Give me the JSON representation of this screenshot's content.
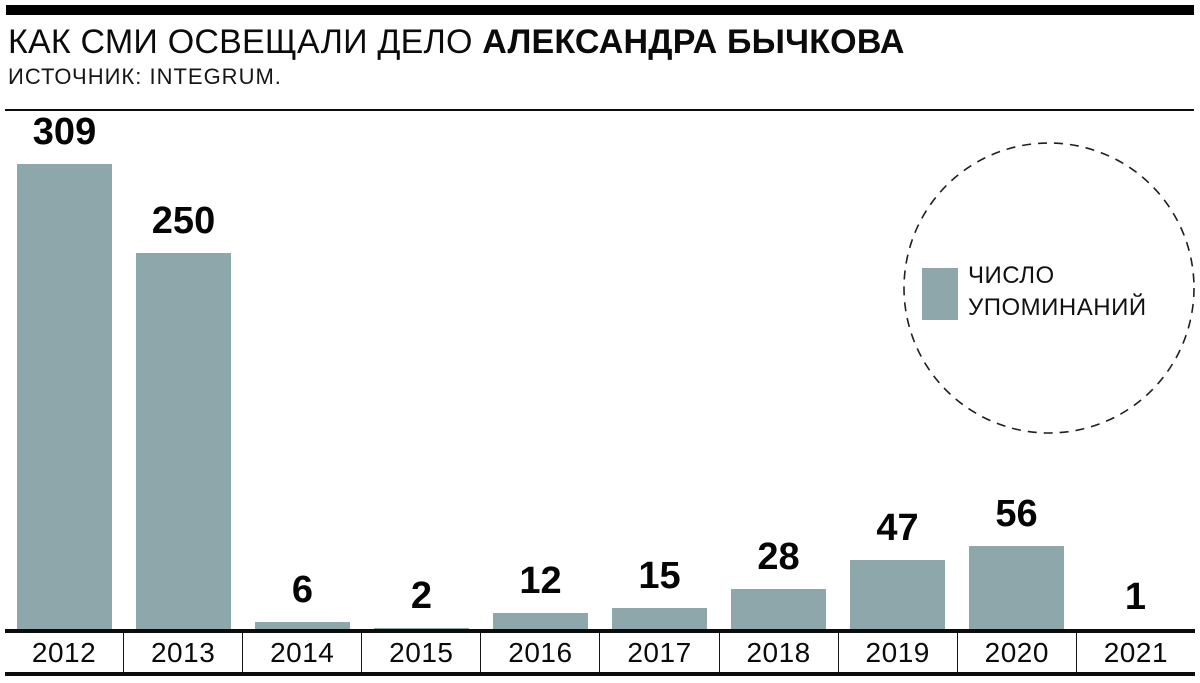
{
  "header": {
    "title_regular": "КАК СМИ ОСВЕЩАЛИ ДЕЛО ",
    "title_bold": "АЛЕКСАНДРА БЫЧКОВА",
    "source": "ИСТОЧНИК: INTEGRUM."
  },
  "legend": {
    "line1": "ЧИСЛО",
    "line2": "УПОМИНАНИЙ"
  },
  "colors": {
    "bar": "#8da7ab",
    "line": "#0c0c0c",
    "circle_stroke": "#1f1f1f"
  },
  "chart_data": {
    "type": "bar",
    "title": "КАК СМИ ОСВЕЩАЛИ ДЕЛО АЛЕКСАНДРА БЫЧКОВА",
    "source": "ИСТОЧНИК: INTEGRUM.",
    "legend": "ЧИСЛО УПОМИНАНИЙ",
    "legend_position": "top-right-dashed-circle",
    "categories": [
      "2012",
      "2013",
      "2014",
      "2015",
      "2016",
      "2017",
      "2018",
      "2019",
      "2020",
      "2021"
    ],
    "values": [
      309,
      250,
      6,
      2,
      12,
      15,
      28,
      47,
      56,
      1
    ],
    "xlabel": "",
    "ylabel": "",
    "ylim": [
      0,
      309
    ],
    "grid": false,
    "bar_color": "#8da7ab",
    "value_labels_shown": true
  }
}
